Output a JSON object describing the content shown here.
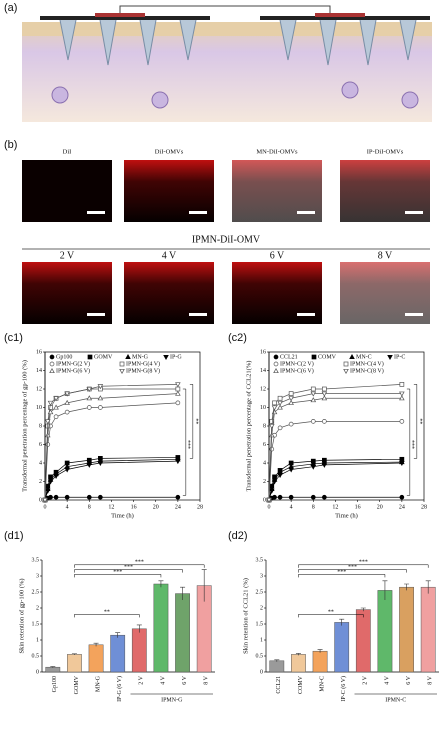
{
  "panels": {
    "a": "(a)",
    "b": "(b)",
    "c1": "(c1)",
    "c2": "(c2)",
    "d1": "(d1)",
    "d2": "(d2)"
  },
  "images": {
    "row1": [
      "DiI",
      "DiI-OMVs",
      "MN-DiI-OMVs",
      "IP-DiI-OMVs"
    ],
    "group": "IPMN-DiI-OMV",
    "row2": [
      "2 V",
      "4 V",
      "6 V",
      "8 V"
    ]
  },
  "chart_data": [
    {
      "type": "line",
      "ylabel": "Transdermal penetration percentage of gp-100 (%)",
      "xlabel": "Time (h)",
      "x": [
        0,
        0.5,
        1,
        2,
        4,
        8,
        10,
        24
      ],
      "xlim": [
        0,
        28
      ],
      "xticks": [
        0,
        4,
        8,
        12,
        16,
        20,
        24,
        28
      ],
      "ylim": [
        0,
        16
      ],
      "yticks": [
        0,
        2,
        4,
        6,
        8,
        10,
        12,
        14,
        16
      ],
      "annotations": [
        "***",
        "**"
      ],
      "series": [
        {
          "name": "Gp100",
          "color": "#000",
          "marker": "circle",
          "filled": true,
          "values": [
            0,
            0.2,
            0.3,
            0.3,
            0.3,
            0.3,
            0.3,
            0.3
          ]
        },
        {
          "name": "GOMV",
          "color": "#000",
          "marker": "square",
          "filled": true,
          "values": [
            0,
            1.5,
            2.5,
            3,
            4,
            4.3,
            4.5,
            4.6
          ]
        },
        {
          "name": "MN-G",
          "color": "#000",
          "marker": "tri",
          "filled": true,
          "values": [
            0,
            1.2,
            2.2,
            2.8,
            3.6,
            4,
            4.2,
            4.4
          ]
        },
        {
          "name": "IP-G",
          "color": "#000",
          "marker": "tridown",
          "filled": true,
          "values": [
            0,
            1,
            2,
            2.6,
            3.3,
            3.8,
            4,
            4.2
          ]
        },
        {
          "name": "IPMN-G(2 V)",
          "color": "#555",
          "marker": "circle",
          "filled": false,
          "values": [
            0,
            6,
            8,
            9,
            9.5,
            10,
            10,
            10.5
          ]
        },
        {
          "name": "IPMN-G(4 V)",
          "color": "#555",
          "marker": "square",
          "filled": false,
          "values": [
            0,
            8,
            10,
            11,
            11.5,
            12,
            12,
            12
          ]
        },
        {
          "name": "IPMN-G(6 V)",
          "color": "#555",
          "marker": "tri",
          "filled": false,
          "values": [
            0,
            7,
            9.5,
            10,
            10.5,
            11,
            11,
            11.5
          ]
        },
        {
          "name": "IPMN-G(8 V)",
          "color": "#555",
          "marker": "tridown",
          "filled": false,
          "values": [
            0,
            8.5,
            10.5,
            11,
            11.5,
            12,
            12.3,
            12.5
          ]
        }
      ]
    },
    {
      "type": "line",
      "ylabel": "Transdermal penetration percentage of CCL21(%)",
      "xlabel": "Time (h)",
      "x": [
        0,
        0.5,
        1,
        2,
        4,
        8,
        10,
        24
      ],
      "xlim": [
        0,
        28
      ],
      "xticks": [
        0,
        4,
        8,
        12,
        16,
        20,
        24,
        28
      ],
      "ylim": [
        0,
        16
      ],
      "yticks": [
        0,
        2,
        4,
        6,
        8,
        10,
        12,
        14,
        16
      ],
      "annotations": [
        "***",
        "**"
      ],
      "series": [
        {
          "name": "CCL21",
          "color": "#000",
          "marker": "circle",
          "filled": true,
          "values": [
            0,
            0.2,
            0.3,
            0.3,
            0.3,
            0.3,
            0.3,
            0.3
          ]
        },
        {
          "name": "COMV",
          "color": "#000",
          "marker": "square",
          "filled": true,
          "values": [
            0,
            1.5,
            2.5,
            3.2,
            4,
            4.2,
            4.3,
            4.4
          ]
        },
        {
          "name": "MN-C",
          "color": "#000",
          "marker": "tri",
          "filled": true,
          "values": [
            0,
            1.2,
            2.2,
            3,
            3.6,
            3.9,
            4,
            4.1
          ]
        },
        {
          "name": "IP-C",
          "color": "#000",
          "marker": "tridown",
          "filled": true,
          "values": [
            0,
            1,
            2,
            2.7,
            3.3,
            3.6,
            3.8,
            4
          ]
        },
        {
          "name": "IPMN-C(2 V)",
          "color": "#555",
          "marker": "circle",
          "filled": false,
          "values": [
            0,
            5.5,
            7,
            7.8,
            8.2,
            8.5,
            8.5,
            8.5
          ]
        },
        {
          "name": "IPMN-C(4 V)",
          "color": "#555",
          "marker": "square",
          "filled": false,
          "values": [
            0,
            8.5,
            10.5,
            11,
            11.5,
            12,
            12,
            12.5
          ]
        },
        {
          "name": "IPMN-C(6 V)",
          "color": "#555",
          "marker": "tri",
          "filled": false,
          "values": [
            0,
            7,
            9.5,
            10,
            10.5,
            10.8,
            11,
            11
          ]
        },
        {
          "name": "IPMN-C(8 V)",
          "color": "#555",
          "marker": "tridown",
          "filled": false,
          "values": [
            0,
            8,
            10,
            10.5,
            11,
            11.5,
            11.5,
            11.5
          ]
        }
      ]
    },
    {
      "type": "bar",
      "ylabel": "Skin retention of gp-100 (%)",
      "group": "IPMN-G",
      "categories": [
        "Gp100",
        "GOMV",
        "MN-G",
        "IP-G (6 V)",
        "2 V",
        "4 V",
        "6 V",
        "8 V"
      ],
      "values": [
        0.15,
        0.55,
        0.85,
        1.15,
        1.35,
        2.75,
        2.45,
        2.7
      ],
      "errors": [
        0.02,
        0.02,
        0.05,
        0.08,
        0.12,
        0.1,
        0.2,
        0.5
      ],
      "colors": [
        "#9a9a9a",
        "#f0c89a",
        "#f3a35c",
        "#6f8fd6",
        "#e06a6a",
        "#5fb86a",
        "#6fa36a",
        "#f0a0a0"
      ],
      "ylim": [
        0,
        3.5
      ],
      "yticks": [
        0,
        0.5,
        1,
        1.5,
        2,
        2.5,
        3,
        3.5
      ],
      "annotations": [
        "**",
        "***",
        "***",
        "***"
      ]
    },
    {
      "type": "bar",
      "ylabel": "Skin retention of CCL21 (%)",
      "group": "IPMN-C",
      "categories": [
        "CCL21",
        "COMV",
        "MN-C",
        "IP-C (6 V)",
        "2 V",
        "4 V",
        "6 V",
        "8 V"
      ],
      "values": [
        0.35,
        0.55,
        0.65,
        1.55,
        1.95,
        2.55,
        2.65,
        2.65
      ],
      "errors": [
        0.03,
        0.03,
        0.05,
        0.1,
        0.05,
        0.3,
        0.1,
        0.2
      ],
      "colors": [
        "#9a9a9a",
        "#f0c89a",
        "#f3a35c",
        "#6f8fd6",
        "#e06a6a",
        "#5fb86a",
        "#d9a060",
        "#f0a0a0"
      ],
      "ylim": [
        0,
        3.5
      ],
      "yticks": [
        0,
        0.5,
        1,
        1.5,
        2,
        2.5,
        3,
        3.5
      ],
      "annotations": [
        "**",
        "***",
        "***",
        "***"
      ]
    }
  ]
}
